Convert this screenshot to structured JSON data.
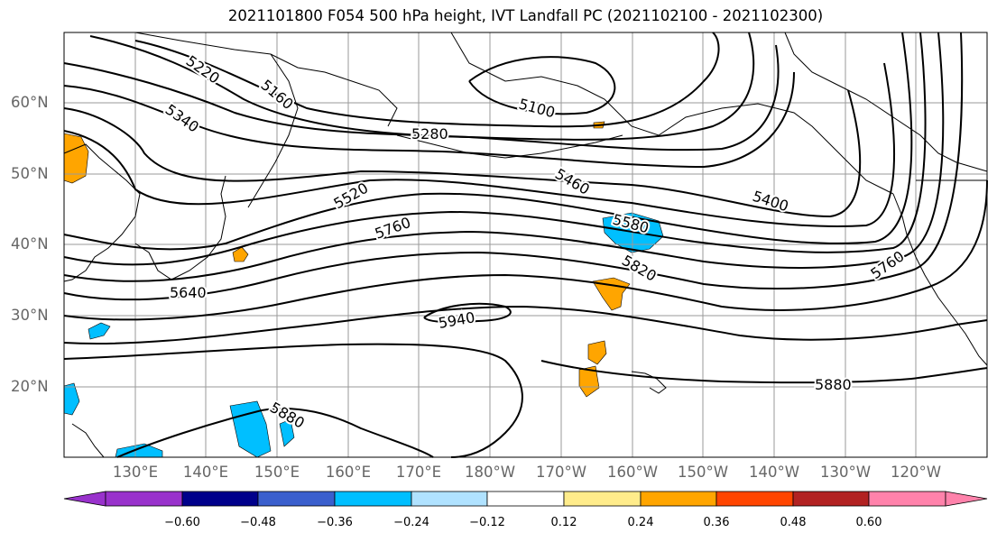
{
  "title": "2021101800 F054 500 hPa height, IVT Landfall PC (2021102100 - 2021102300)",
  "lat_labels": [
    "60°N",
    "50°N",
    "40°N",
    "30°N",
    "20°N"
  ],
  "lon_labels": [
    "130°E",
    "140°E",
    "150°E",
    "160°E",
    "170°E",
    "180°W",
    "170°W",
    "160°W",
    "150°W",
    "140°W",
    "130°W",
    "120°W"
  ],
  "contour_labels": [
    "5220",
    "5160",
    "5340",
    "5100",
    "5280",
    "5520",
    "5460",
    "5400",
    "5580",
    "5760",
    "5820",
    "5640",
    "5940",
    "5760",
    "5880",
    "5880"
  ],
  "colorbar": {
    "tick_labels": [
      "−0.60",
      "−0.48",
      "−0.36",
      "−0.24",
      "−0.12",
      "0.12",
      "0.24",
      "0.36",
      "0.48",
      "0.60"
    ],
    "colors": [
      "#9932cc",
      "#00008b",
      "#3a5fcd",
      "#00bfff",
      "#b0e2ff",
      "#ffffff",
      "#ffec8b",
      "#ffa500",
      "#ff4500",
      "#b22222",
      "#ff82ab"
    ]
  }
}
